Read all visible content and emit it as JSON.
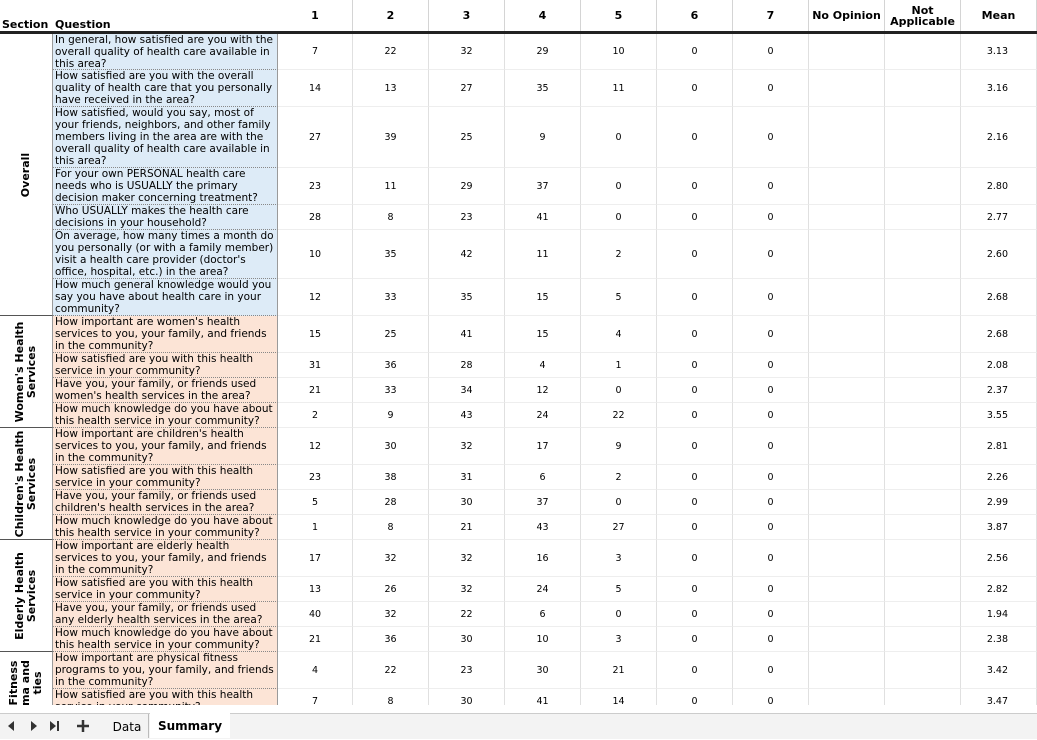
{
  "header": {
    "section": "Section",
    "question": "Question",
    "columns": [
      "1",
      "2",
      "3",
      "4",
      "5",
      "6",
      "7",
      "No Opinion",
      "Not Applicable",
      "Mean"
    ]
  },
  "sections": [
    {
      "label": [
        "Overall"
      ],
      "rows": [
        {
          "question": "In general, how satisfied are you with the overall quality of health care available in this area?",
          "counts": [
            7,
            22,
            32,
            29,
            10,
            0,
            0
          ],
          "mean": "3.13"
        },
        {
          "question": "How satisfied are you with the overall quality of health care that you personally have received in the area?",
          "counts": [
            14,
            13,
            27,
            35,
            11,
            0,
            0
          ],
          "mean": "3.16"
        },
        {
          "question": "How satisfied, would you say, most of your friends, neighbors, and other family members living in the area are with the overall quality of health care available in this area?",
          "counts": [
            27,
            39,
            25,
            9,
            0,
            0,
            0
          ],
          "mean": "2.16"
        },
        {
          "question": "For your own PERSONAL health care needs who is USUALLY the primary decision maker concerning treatment?",
          "counts": [
            23,
            11,
            29,
            37,
            0,
            0,
            0
          ],
          "mean": "2.80"
        },
        {
          "question": "Who USUALLY makes the health care decisions in your household?",
          "counts": [
            28,
            8,
            23,
            41,
            0,
            0,
            0
          ],
          "mean": "2.77"
        },
        {
          "question": "On average, how many times a month do you personally (or with a family member) visit a health care provider (doctor's office, hospital, etc.) in the area?",
          "counts": [
            10,
            35,
            42,
            11,
            2,
            0,
            0
          ],
          "mean": "2.60"
        },
        {
          "question": "How much general knowledge would you say you have about health care in your community?",
          "counts": [
            12,
            33,
            35,
            15,
            5,
            0,
            0
          ],
          "mean": "2.68"
        }
      ]
    },
    {
      "label": [
        "Women's Health",
        "Services"
      ],
      "rows": [
        {
          "question": "How important are women's health services to you, your family, and friends in the community?",
          "counts": [
            15,
            25,
            41,
            15,
            4,
            0,
            0
          ],
          "mean": "2.68"
        },
        {
          "question": "How satisfied are you with this health service in your community?",
          "counts": [
            31,
            36,
            28,
            4,
            1,
            0,
            0
          ],
          "mean": "2.08"
        },
        {
          "question": "Have you, your family, or friends used women's health services in the area?",
          "counts": [
            21,
            33,
            34,
            12,
            0,
            0,
            0
          ],
          "mean": "2.37"
        },
        {
          "question": "How much knowledge do you have about this health service in your community?",
          "counts": [
            2,
            9,
            43,
            24,
            22,
            0,
            0
          ],
          "mean": "3.55"
        }
      ]
    },
    {
      "label": [
        "Children's Health",
        "Services"
      ],
      "rows": [
        {
          "question": "How important are children's health services to you, your family, and friends in the community?",
          "counts": [
            12,
            30,
            32,
            17,
            9,
            0,
            0
          ],
          "mean": "2.81"
        },
        {
          "question": "How satisfied are you with this health service in your community?",
          "counts": [
            23,
            38,
            31,
            6,
            2,
            0,
            0
          ],
          "mean": "2.26"
        },
        {
          "question": "Have you, your family, or friends used children's health services in the area?",
          "counts": [
            5,
            28,
            30,
            37,
            0,
            0,
            0
          ],
          "mean": "2.99"
        },
        {
          "question": "How much knowledge do you have about this health service in your community?",
          "counts": [
            1,
            8,
            21,
            43,
            27,
            0,
            0
          ],
          "mean": "3.87"
        }
      ]
    },
    {
      "label": [
        "Elderly Health",
        "Services"
      ],
      "rows": [
        {
          "question": "How important are elderly health services to you, your family, and friends in the community?",
          "counts": [
            17,
            32,
            32,
            16,
            3,
            0,
            0
          ],
          "mean": "2.56"
        },
        {
          "question": "How satisfied are you with this health service in your community?",
          "counts": [
            13,
            26,
            32,
            24,
            5,
            0,
            0
          ],
          "mean": "2.82"
        },
        {
          "question": "Have you, your family, or friends used any elderly health services in the area?",
          "counts": [
            40,
            32,
            22,
            6,
            0,
            0,
            0
          ],
          "mean": "1.94"
        },
        {
          "question": "How much knowledge do you have about this health service in your community?",
          "counts": [
            21,
            36,
            30,
            10,
            3,
            0,
            0
          ],
          "mean": "2.38"
        }
      ]
    },
    {
      "label": [
        "Fitness",
        "ma and",
        "ties"
      ],
      "rows": [
        {
          "question": "How important are physical fitness programs to you, your family, and friends in the community?",
          "counts": [
            4,
            22,
            23,
            30,
            21,
            0,
            0
          ],
          "mean": "3.42"
        },
        {
          "question": "How satisfied are you with this health service in your community?",
          "counts": [
            7,
            8,
            30,
            41,
            14,
            0,
            0
          ],
          "mean": "3.47"
        }
      ]
    }
  ],
  "tabs": [
    "Data",
    "Summary"
  ]
}
